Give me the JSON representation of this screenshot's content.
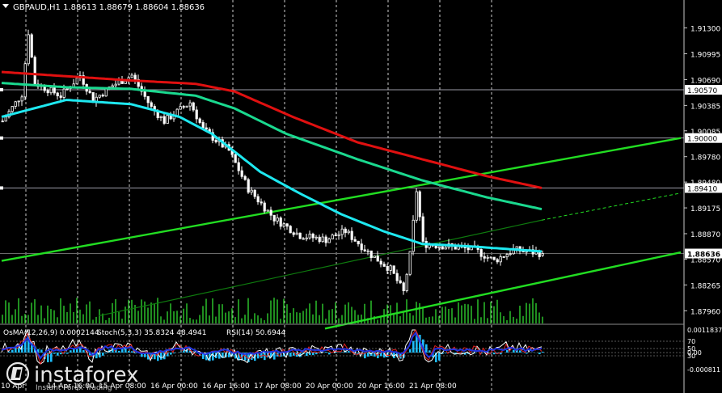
{
  "header": {
    "symbol_line": "GBPAUD,H1  1.88613 1.88679 1.88604 1.88636"
  },
  "indicator_header": {
    "osma": "OsMA(12,26,9) 0.0002144",
    "stoch": "Stoch(5,3,3) 35.8324 48.4941",
    "rsi": "RSI(14) 50.6944"
  },
  "watermark": {
    "brand": "instaforex",
    "tagline": "Instant Forex Trading"
  },
  "colors": {
    "background": "#000000",
    "candle": "#ffffff",
    "ema_fast": "#1ee8f0",
    "ema_mid": "#1ad98f",
    "ema_slow": "#e01010",
    "channel": "#22dd22",
    "histogram": "#1ebeff",
    "stoch_main": "#ffffff",
    "stoch_signal": "#e02020",
    "rsi": "#2233dd",
    "osma_line": "#3344ff"
  },
  "chart_data": {
    "type": "candlestick",
    "symbol": "GBPAUD",
    "timeframe": "H1",
    "last_ohlc": {
      "open": 1.88613,
      "high": 1.88679,
      "low": 1.88604,
      "close": 1.88636
    },
    "ylim": [
      1.8781,
      1.9163
    ],
    "y_ticks": [
      "1.91300",
      "1.90995",
      "1.90690",
      "1.90385",
      "1.90085",
      "1.89780",
      "1.89480",
      "1.89175",
      "1.88870",
      "1.88570",
      "1.88265",
      "1.87960"
    ],
    "levels": [
      {
        "value": 1.9057,
        "label": "1.90570"
      },
      {
        "value": 1.9,
        "label": "1.90000"
      },
      {
        "value": 1.8941,
        "label": "1.89410"
      }
    ],
    "current_price": {
      "value": 1.88636,
      "label": "1.88636"
    },
    "x_labels": [
      "10 Apr",
      "14 Apr 16:00",
      "15 Apr 08:00",
      "16 Apr 00:00",
      "16 Apr 16:00",
      "17 Apr 08:00",
      "20 Apr 00:00",
      "20 Apr 16:00",
      "21 Apr 08:00"
    ],
    "x_label_positions": [
      0,
      16,
      32,
      48,
      64,
      80,
      96,
      112,
      128
    ],
    "day_separators": [
      0,
      16,
      32,
      48,
      64,
      80,
      96,
      112,
      128,
      144
    ],
    "bar_count": 168,
    "price_path": [
      [
        0,
        1.902
      ],
      [
        6,
        1.9052
      ],
      [
        8,
        1.9125
      ],
      [
        10,
        1.9065
      ],
      [
        18,
        1.905
      ],
      [
        24,
        1.9074
      ],
      [
        28,
        1.9045
      ],
      [
        34,
        1.9062
      ],
      [
        40,
        1.9074
      ],
      [
        46,
        1.9036
      ],
      [
        50,
        1.902
      ],
      [
        58,
        1.9042
      ],
      [
        62,
        1.901
      ],
      [
        70,
        1.8985
      ],
      [
        76,
        1.894
      ],
      [
        84,
        1.8905
      ],
      [
        92,
        1.8885
      ],
      [
        100,
        1.888
      ],
      [
        106,
        1.889
      ],
      [
        114,
        1.8862
      ],
      [
        120,
        1.8845
      ],
      [
        124,
        1.8818
      ],
      [
        126,
        1.8862
      ],
      [
        128,
        1.8938
      ],
      [
        130,
        1.8875
      ],
      [
        138,
        1.8872
      ],
      [
        146,
        1.8868
      ],
      [
        152,
        1.8855
      ],
      [
        158,
        1.8868
      ],
      [
        167,
        1.88636
      ]
    ],
    "moving_averages": [
      {
        "name": "ema_fast",
        "points": [
          [
            0,
            1.9025
          ],
          [
            20,
            1.9045
          ],
          [
            40,
            1.904
          ],
          [
            55,
            1.9025
          ],
          [
            65,
            1.9005
          ],
          [
            80,
            1.896
          ],
          [
            92,
            1.8935
          ],
          [
            105,
            1.891
          ],
          [
            118,
            1.889
          ],
          [
            130,
            1.8875
          ],
          [
            145,
            1.8872
          ],
          [
            160,
            1.8868
          ],
          [
            167,
            1.8866
          ]
        ]
      },
      {
        "name": "ema_mid",
        "points": [
          [
            0,
            1.9065
          ],
          [
            20,
            1.906
          ],
          [
            40,
            1.9058
          ],
          [
            60,
            1.905
          ],
          [
            72,
            1.9035
          ],
          [
            88,
            1.9005
          ],
          [
            110,
            1.8975
          ],
          [
            130,
            1.895
          ],
          [
            150,
            1.893
          ],
          [
            167,
            1.8916
          ]
        ]
      },
      {
        "name": "ema_slow",
        "points": [
          [
            0,
            1.9078
          ],
          [
            20,
            1.9073
          ],
          [
            40,
            1.9068
          ],
          [
            60,
            1.9064
          ],
          [
            72,
            1.9055
          ],
          [
            90,
            1.9025
          ],
          [
            110,
            1.8995
          ],
          [
            130,
            1.8975
          ],
          [
            150,
            1.8955
          ],
          [
            167,
            1.8941
          ]
        ]
      }
    ],
    "trendlines": [
      {
        "name": "channel_upper",
        "from": [
          0,
          1.8855
        ],
        "to": [
          210,
          1.9
        ],
        "style": "solid"
      },
      {
        "name": "channel_lower",
        "from": [
          100,
          1.8775
        ],
        "to": [
          210,
          1.8865
        ],
        "style": "solid"
      },
      {
        "name": "inner_line",
        "from": [
          30,
          1.879
        ],
        "to": [
          167,
          1.8903
        ],
        "style": "solid",
        "extend_to": [
          210,
          1.8935
        ]
      }
    ],
    "sub_panel": {
      "osma_top": "0.0011837",
      "osma_bottom": "-0.000811",
      "levels": [
        "70",
        "50",
        "30",
        "0.00"
      ]
    }
  }
}
